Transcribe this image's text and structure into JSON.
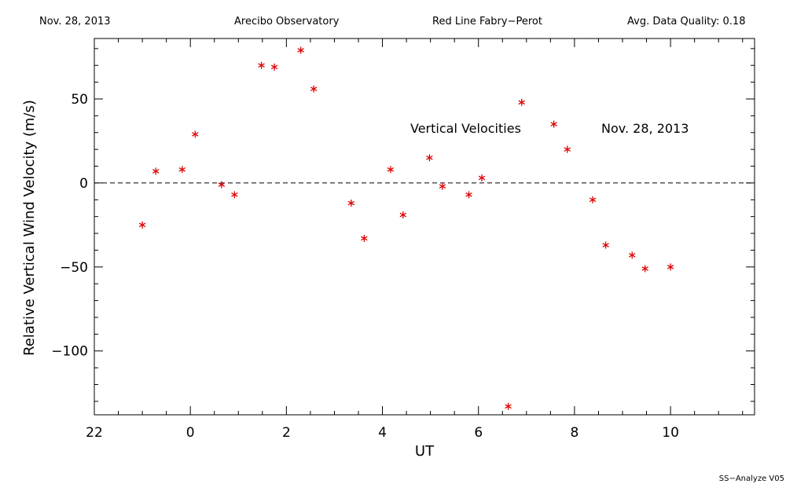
{
  "header": {
    "date": "Nov. 28, 2013",
    "observatory": "Arecibo Observatory",
    "instrument": "Red Line Fabry−Perot",
    "quality": "Avg. Data Quality: 0.18"
  },
  "footer": {
    "software": "SS−Analyze V05"
  },
  "colors": {
    "points": "#dd0000",
    "axes": "#000000",
    "zero_line": "#000000"
  },
  "chart_data": {
    "type": "scatter",
    "xlabel": "UT",
    "ylabel": "Relative Vertical Wind Velocity  (m/s)",
    "xlim": [
      -2.0,
      11.75
    ],
    "ylim": [
      -138,
      86
    ],
    "x_ticks": [
      22,
      0,
      2,
      4,
      6,
      8,
      10
    ],
    "x_tick_positions": [
      -2,
      0,
      2,
      4,
      6,
      8,
      10
    ],
    "y_ticks": [
      "50",
      "0",
      "−50",
      "−100"
    ],
    "y_tick_values": [
      50,
      0,
      -50,
      -100
    ],
    "zero_line": true,
    "annotations": [
      "Vertical Velocities",
      "Nov. 28, 2013"
    ],
    "marker": "asterisk",
    "series": [
      {
        "x": [
          -1.0,
          -0.72,
          -0.17,
          0.1,
          0.65,
          0.92,
          1.48,
          1.75,
          2.3,
          2.57,
          3.35,
          3.62,
          4.17,
          4.43,
          4.98,
          5.25,
          5.8,
          6.07,
          6.62,
          6.9,
          7.57,
          7.85,
          8.38,
          8.65,
          9.2,
          9.47,
          10.0
        ],
        "y": [
          -25,
          7,
          8,
          29,
          -1,
          -7,
          70,
          69,
          79,
          56,
          -12,
          -33,
          8,
          -19,
          15,
          -2,
          -7,
          3,
          -133,
          48,
          35,
          20,
          -10,
          -37,
          -43,
          -51,
          -50
        ]
      }
    ]
  }
}
